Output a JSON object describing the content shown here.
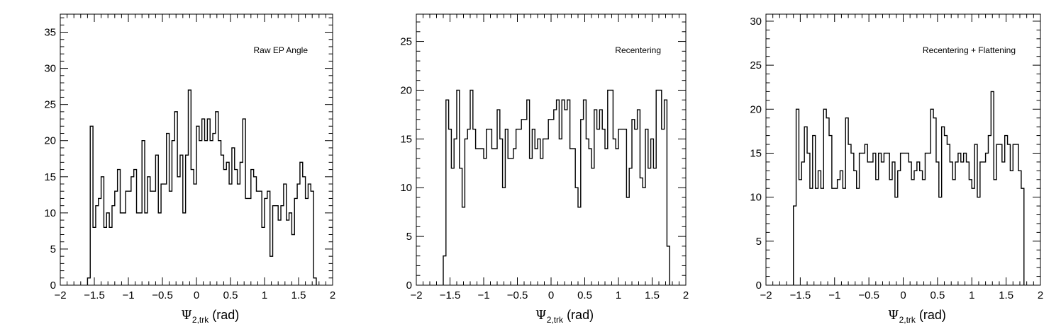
{
  "chart_data": [
    {
      "type": "histogram",
      "annotation": "Raw EP Angle",
      "xlabel_symbol": "Ψ",
      "xlabel_sub": "2,trk",
      "xlabel_unit": "(rad)",
      "xlim": [
        -2,
        2
      ],
      "ylim": [
        0,
        37.5
      ],
      "x_ticks": [
        "−2",
        "−1.5",
        "−1",
        "−0.5",
        "0",
        "0.5",
        "1",
        "1.5",
        "2"
      ],
      "y_ticks": [
        "0",
        "5",
        "10",
        "15",
        "20",
        "25",
        "30",
        "35"
      ],
      "bin_start": -1.6,
      "bin_width": 0.04,
      "values": [
        1,
        22,
        8,
        11,
        12,
        15,
        8,
        10,
        8,
        11,
        13,
        16,
        10,
        10,
        13,
        13,
        15,
        16,
        10,
        10,
        20,
        10,
        15,
        13,
        13,
        18,
        10,
        14,
        14,
        21,
        13,
        20,
        24,
        15,
        18,
        10,
        18,
        27,
        16,
        14,
        22,
        20,
        23,
        20,
        23,
        20,
        21,
        24,
        20,
        18,
        16,
        17,
        14,
        19,
        16,
        14,
        17,
        23,
        12,
        12,
        16,
        15,
        13,
        13,
        8,
        12,
        13,
        4,
        11,
        11,
        9,
        11,
        14,
        9,
        10,
        7,
        12,
        14,
        17,
        15,
        12,
        14,
        13,
        1
      ],
      "y_tick_values": [
        0,
        5,
        10,
        15,
        20,
        25,
        30,
        35
      ]
    },
    {
      "type": "histogram",
      "annotation": "Recentering",
      "xlabel_symbol": "Ψ",
      "xlabel_sub": "2,trk",
      "xlabel_unit": "(rad)",
      "xlim": [
        -2,
        2
      ],
      "ylim": [
        0,
        27.8
      ],
      "x_ticks": [
        "−2",
        "−1.5",
        "−1",
        "−0.5",
        "0",
        "0.5",
        "1",
        "1.5",
        "2"
      ],
      "y_ticks": [
        "0",
        "5",
        "10",
        "15",
        "20",
        "25"
      ],
      "bin_start": -1.6,
      "bin_width": 0.04,
      "values": [
        3,
        19,
        16,
        12,
        15,
        20,
        12,
        8,
        15,
        16,
        20,
        16,
        14,
        14,
        14,
        13,
        16,
        16,
        14,
        14,
        18,
        15,
        10,
        16,
        13,
        13,
        14,
        16,
        16,
        17,
        17,
        19,
        13,
        16,
        14,
        15,
        13,
        15,
        15,
        17,
        17,
        18,
        19,
        15,
        19,
        18,
        19,
        14,
        14,
        10,
        8,
        17,
        19,
        15,
        14,
        12,
        18,
        16,
        18,
        16,
        14,
        20,
        20,
        15,
        14,
        16,
        16,
        16,
        9,
        12,
        17,
        16,
        18,
        11,
        10,
        16,
        12,
        15,
        12,
        20,
        20,
        16,
        19,
        4
      ],
      "y_tick_values": [
        0,
        5,
        10,
        15,
        20,
        25
      ]
    },
    {
      "type": "histogram",
      "annotation": "Recentering + Flattening",
      "xlabel_symbol": "Ψ",
      "xlabel_sub": "2,trk",
      "xlabel_unit": "(rad)",
      "xlim": [
        -2,
        2
      ],
      "ylim": [
        0,
        30.8
      ],
      "x_ticks": [
        "−2",
        "−1.5",
        "−1",
        "−0.5",
        "0",
        "0.5",
        "1",
        "1.5",
        "2"
      ],
      "y_ticks": [
        "0",
        "5",
        "10",
        "15",
        "20",
        "25",
        "30"
      ],
      "bin_start": -1.6,
      "bin_width": 0.04,
      "values": [
        9,
        20,
        12,
        14,
        18,
        15,
        11,
        17,
        11,
        13,
        11,
        20,
        19,
        17,
        11,
        11,
        12,
        13,
        11,
        19,
        16,
        15,
        13,
        11,
        15,
        15,
        16,
        14,
        14,
        15,
        12,
        15,
        14,
        15,
        15,
        12,
        14,
        10,
        13,
        15,
        15,
        15,
        14,
        12,
        13,
        14,
        13,
        12,
        15,
        15,
        20,
        19,
        14,
        10,
        18,
        17,
        16,
        14,
        12,
        14,
        15,
        14,
        15,
        14,
        12,
        11,
        16,
        10,
        14,
        14,
        15,
        17,
        22,
        12,
        16,
        16,
        14,
        17,
        16,
        13,
        16,
        16,
        13,
        11
      ],
      "y_tick_values": [
        0,
        5,
        10,
        15,
        20,
        25,
        30
      ]
    }
  ]
}
